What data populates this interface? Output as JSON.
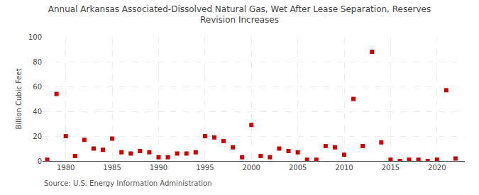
{
  "chart_data": {
    "type": "scatter",
    "title": "Annual Arkansas Associated-Dissolved Natural Gas, Wet After Lease Separation, Reserves\nRevision Increases",
    "ylabel": "Billion Cubic Feet",
    "annotations": [
      "Source: U.S. Energy Information Administration"
    ],
    "color": "#cc0000",
    "marker": "square",
    "xlim": [
      1977.5,
      2023
    ],
    "ylim": [
      0,
      100
    ],
    "yticks": [
      0,
      20,
      40,
      60,
      80,
      100
    ],
    "xticks": [
      1980,
      1985,
      1990,
      1995,
      2000,
      2005,
      2010,
      2015,
      2020
    ],
    "grid": true,
    "x": [
      1978,
      1979,
      1980,
      1981,
      1982,
      1983,
      1984,
      1985,
      1986,
      1987,
      1988,
      1989,
      1990,
      1991,
      1992,
      1993,
      1994,
      1995,
      1996,
      1997,
      1998,
      1999,
      2000,
      2001,
      2002,
      2003,
      2004,
      2005,
      2006,
      2007,
      2008,
      2009,
      2010,
      2011,
      2012,
      2013,
      2014,
      2015,
      2016,
      2017,
      2018,
      2019,
      2020,
      2021,
      2022
    ],
    "values": [
      1,
      54,
      20,
      4,
      17,
      10,
      9,
      18,
      7,
      6,
      8,
      7,
      3,
      3,
      6,
      6,
      7,
      20,
      19,
      16,
      11,
      3,
      29,
      4,
      3,
      10,
      8,
      7,
      1,
      1,
      12,
      11,
      5,
      50,
      12,
      88,
      15,
      1,
      0,
      1,
      1,
      0,
      1,
      57,
      2
    ]
  }
}
